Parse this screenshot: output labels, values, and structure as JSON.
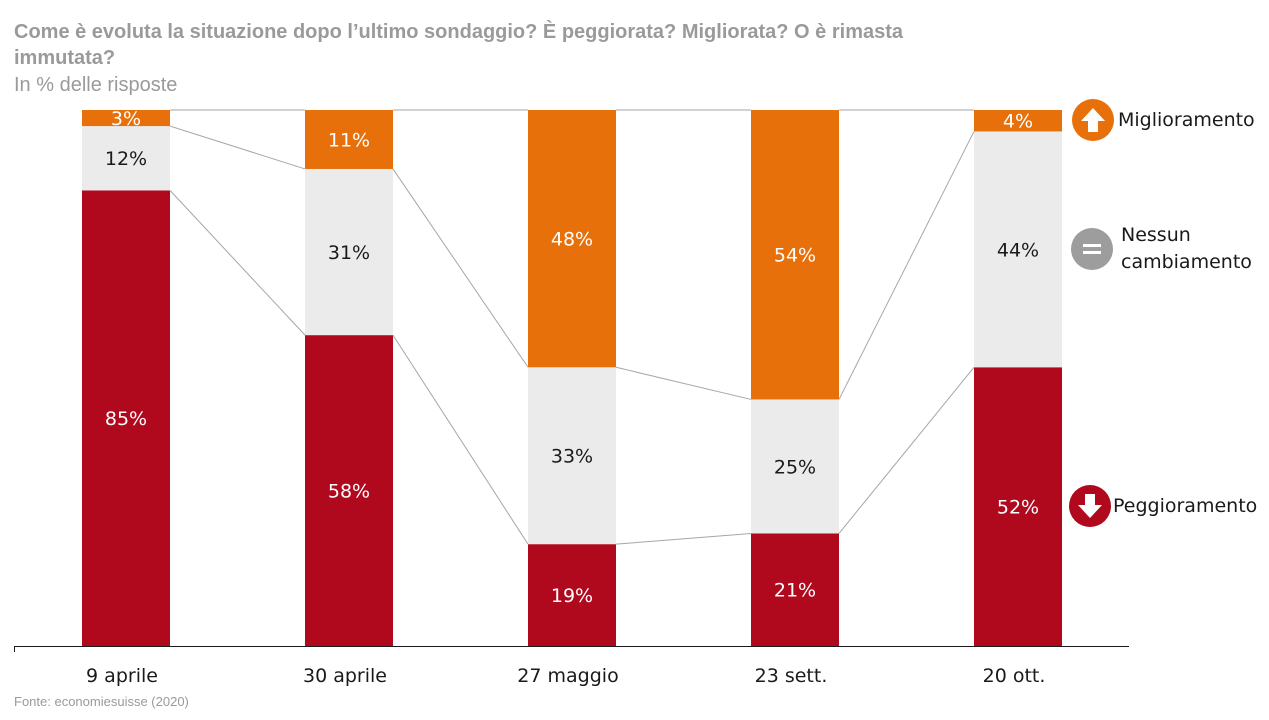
{
  "header": {
    "title": "Come è evoluta la situazione dopo l’ultimo sondaggio? È peggiorata? Migliorata? O è rimasta immutata?",
    "subtitle": "In % delle risposte"
  },
  "footer": {
    "source": "Fonte: economiesuisse (2020)"
  },
  "legend": {
    "improvement": "Miglioramento",
    "no_change_line1": "Nessun",
    "no_change_line2": "cambiamento",
    "worsening": "Peggioramento"
  },
  "colors": {
    "improvement": "#e8700a",
    "no_change": "#ebebeb",
    "worsening": "#b0091d",
    "no_change_icon": "#9d9d9d",
    "connector": "#a6a6a6"
  },
  "chart_data": {
    "type": "bar",
    "stacked": true,
    "categories": [
      "9 aprile",
      "30 aprile",
      "27 maggio",
      "23 sett.",
      "20 ott."
    ],
    "series": [
      {
        "name": "Peggioramento",
        "values": [
          85,
          58,
          19,
          21,
          52
        ],
        "labels": [
          "85%",
          "58%",
          "19%",
          "21%",
          "52%"
        ]
      },
      {
        "name": "Nessun cambiamento",
        "values": [
          12,
          31,
          33,
          25,
          44
        ],
        "labels": [
          "12%",
          "31%",
          "33%",
          "25%",
          "44%"
        ]
      },
      {
        "name": "Miglioramento",
        "values": [
          3,
          11,
          48,
          54,
          4
        ],
        "labels": [
          "3%",
          "11%",
          "48%",
          "54%",
          "4%"
        ]
      }
    ],
    "ylim": [
      0,
      100
    ],
    "grid": false,
    "legend_position": "right"
  }
}
